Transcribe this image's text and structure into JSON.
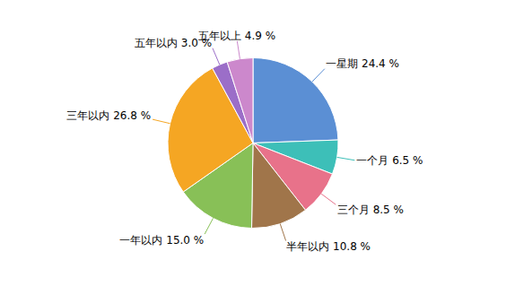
{
  "chart_data": {
    "type": "pie",
    "categories": [
      "一星期",
      "一个月",
      "三个月",
      "半年以内",
      "一年以内",
      "三年以内",
      "五年以内",
      "五年以上"
    ],
    "values": [
      24.4,
      6.5,
      8.5,
      10.8,
      15.0,
      26.8,
      3.0,
      4.9
    ],
    "value_labels": [
      "一星期 24.4 %",
      "一个月 6.5 %",
      "三个月 8.5 %",
      "半年以内 10.8 %",
      "一年以内 15.0 %",
      "三年以内 26.8 %",
      "五年以内 3.0 %",
      "五年以上 4.9 %"
    ],
    "colors": [
      "#5B8FD4",
      "#3DBFB8",
      "#E8728A",
      "#A0754A",
      "#88C057",
      "#F5A623",
      "#9B6EC8",
      "#CC88CC"
    ],
    "data_labels": true
  }
}
